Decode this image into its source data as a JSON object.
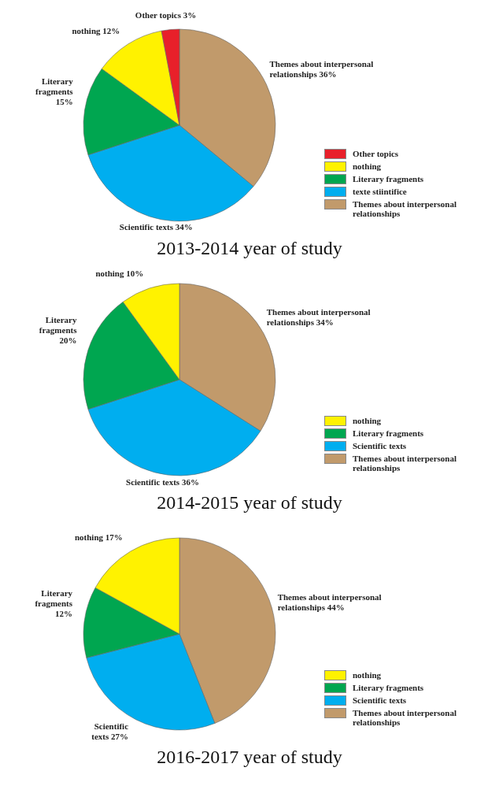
{
  "chart_data": [
    {
      "type": "pie",
      "title": "2013-2014 year of study",
      "categories": [
        "Themes about interpersonal relationships",
        "texte stiintifice",
        "Literary fragments",
        "nothing",
        "Other topics"
      ],
      "values": [
        36,
        34,
        15,
        12,
        3
      ],
      "colors": [
        "#c19a6b",
        "#00aeef",
        "#00a650",
        "#fff200",
        "#e8202a"
      ],
      "value_labels": [
        "Themes about interpersonal relationships 36%",
        "Scientific texts 34%",
        "Literary fragments 15%",
        "nothing 12%",
        "Other topics 3%"
      ],
      "legend": "right"
    },
    {
      "type": "pie",
      "title": "2014-2015 year of study",
      "categories": [
        "Themes about interpersonal relationships",
        "Scientific texts",
        "Literary fragments",
        "nothing"
      ],
      "values": [
        34,
        36,
        20,
        10
      ],
      "colors": [
        "#c19a6b",
        "#00aeef",
        "#00a650",
        "#fff200"
      ],
      "value_labels": [
        "Themes about interpersonal relationships 34%",
        "Scientific texts 36%",
        "Literary fragments 20%",
        "nothing 10%"
      ],
      "legend": "right"
    },
    {
      "type": "pie",
      "title": "2016-2017 year of study",
      "categories": [
        "Themes about interpersonal relationships",
        "Scientific texts",
        "Literary fragments",
        "nothing"
      ],
      "values": [
        44,
        27,
        12,
        17
      ],
      "colors": [
        "#c19a6b",
        "#00aeef",
        "#00a650",
        "#fff200"
      ],
      "value_labels": [
        "Themes about interpersonal relationships 44%",
        "Scientific texts 27%",
        "Literary fragments 12%",
        "nothing 17%"
      ],
      "legend": "right"
    }
  ]
}
